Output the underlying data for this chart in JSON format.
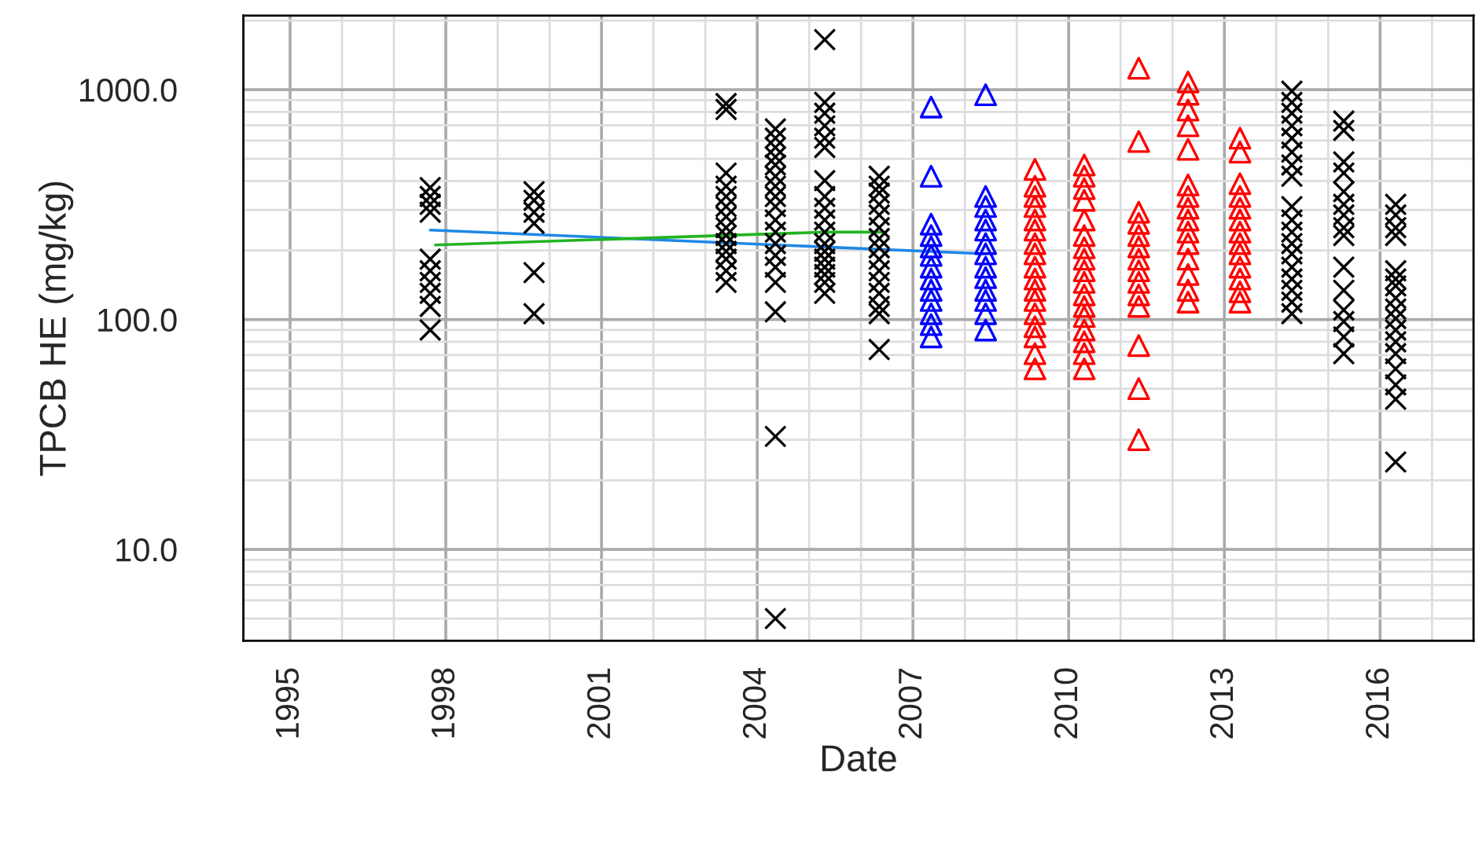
{
  "chart_data": {
    "type": "scatter",
    "xlabel": "Date",
    "ylabel": "TPCB HE (mg/kg)",
    "log": "y",
    "grid": true,
    "legend": false,
    "xlim": [
      1994.1,
      2017.8
    ],
    "xticks": [
      1995,
      1998,
      2001,
      2004,
      2007,
      2010,
      2013,
      2016
    ],
    "ylim": [
      4,
      2100
    ],
    "yticks": [
      {
        "value": 10,
        "label": "10.0"
      },
      {
        "value": 100,
        "label": "100.0"
      },
      {
        "value": 1000,
        "label": "1000.0"
      }
    ],
    "series": [
      {
        "marker": "cross",
        "color": "#000000",
        "x": [
          1997.7,
          1997.7,
          1997.7,
          1997.7,
          1997.7,
          1997.7,
          1997.7,
          1997.7,
          1997.7,
          1997.7,
          1999.7,
          1999.7,
          1999.7,
          1999.7,
          1999.7,
          1999.7,
          2003.4,
          2003.4,
          2003.4,
          2003.4,
          2003.4,
          2003.4,
          2003.4,
          2003.4,
          2003.4,
          2003.4,
          2003.4,
          2003.4,
          2003.4,
          2003.4,
          2004.35,
          2004.35,
          2004.35,
          2004.35,
          2004.35,
          2004.35,
          2004.35,
          2004.35,
          2004.35,
          2004.35,
          2004.35,
          2004.35,
          2004.35,
          2004.35,
          2004.35,
          2004.35,
          2004.35,
          2004.35,
          2005.3,
          2005.3,
          2005.3,
          2005.3,
          2005.3,
          2005.3,
          2005.3,
          2005.3,
          2005.3,
          2005.3,
          2005.3,
          2005.3,
          2005.3,
          2005.3,
          2005.3,
          2005.3,
          2005.3,
          2005.3,
          2006.35,
          2006.35,
          2006.35,
          2006.35,
          2006.35,
          2006.35,
          2006.35,
          2006.35,
          2006.35,
          2006.35,
          2006.35,
          2006.35,
          2006.35,
          2006.35,
          2006.35,
          2014.3,
          2014.3,
          2014.3,
          2014.3,
          2014.3,
          2014.3,
          2014.3,
          2014.3,
          2014.3,
          2014.3,
          2014.3,
          2014.3,
          2014.3,
          2014.3,
          2014.3,
          2014.3,
          2014.3,
          2014.3,
          2015.3,
          2015.3,
          2015.3,
          2015.3,
          2015.3,
          2015.3,
          2015.3,
          2015.3,
          2015.3,
          2015.3,
          2015.3,
          2015.3,
          2015.3,
          2015.3,
          2015.3,
          2016.3,
          2016.3,
          2016.3,
          2016.3,
          2016.3,
          2016.3,
          2016.3,
          2016.3,
          2016.3,
          2016.3,
          2016.3,
          2016.3,
          2016.3,
          2016.3,
          2016.3,
          2016.3,
          2016.3
        ],
        "values": [
          375,
          343,
          317,
          293,
          183,
          163,
          145,
          130,
          114,
          90,
          360,
          330,
          293,
          262,
          160,
          106,
          870,
          820,
          434,
          380,
          343,
          310,
          280,
          251,
          232,
          214,
          198,
          183,
          163,
          145,
          675,
          615,
          560,
          510,
          470,
          420,
          380,
          343,
          310,
          271,
          240,
          214,
          190,
          169,
          145,
          108,
          31,
          5,
          1650,
          880,
          790,
          696,
          615,
          560,
          402,
          343,
          305,
          271,
          240,
          214,
          198,
          183,
          169,
          157,
          145,
          130,
          420,
          380,
          355,
          317,
          285,
          251,
          225,
          205,
          183,
          163,
          145,
          130,
          114,
          106,
          74,
          985,
          880,
          790,
          696,
          615,
          535,
          470,
          420,
          310,
          271,
          240,
          214,
          193,
          169,
          150,
          134,
          119,
          106,
          730,
          665,
          485,
          434,
          360,
          317,
          285,
          251,
          232,
          169,
          134,
          110,
          98,
          84,
          71,
          317,
          285,
          251,
          232,
          163,
          150,
          140,
          124,
          111,
          101,
          90,
          80,
          71,
          61,
          52,
          45,
          24
        ]
      },
      {
        "marker": "triangle",
        "color": "#0000ff",
        "x": [
          2007.35,
          2007.35,
          2007.35,
          2007.35,
          2007.35,
          2007.35,
          2007.35,
          2007.35,
          2007.35,
          2007.35,
          2007.35,
          2007.35,
          2007.35,
          2008.4,
          2008.4,
          2008.4,
          2008.4,
          2008.4,
          2008.4,
          2008.4,
          2008.4,
          2008.4,
          2008.4,
          2008.4,
          2008.4,
          2008.4
        ],
        "values": [
          840,
          420,
          260,
          232,
          207,
          190,
          169,
          150,
          134,
          121,
          106,
          95,
          84,
          950,
          343,
          310,
          271,
          245,
          214,
          193,
          169,
          152,
          134,
          121,
          106,
          90
        ]
      },
      {
        "marker": "triangle",
        "color": "#ff0000",
        "x": [
          2009.35,
          2009.35,
          2009.35,
          2009.35,
          2009.35,
          2009.35,
          2009.35,
          2009.35,
          2009.35,
          2009.35,
          2009.35,
          2009.35,
          2009.35,
          2009.35,
          2009.35,
          2009.35,
          2009.35,
          2010.3,
          2010.3,
          2010.3,
          2010.3,
          2010.3,
          2010.3,
          2010.3,
          2010.3,
          2010.3,
          2010.3,
          2010.3,
          2010.3,
          2010.3,
          2010.3,
          2010.3,
          2010.3,
          2010.3,
          2011.35,
          2011.35,
          2011.35,
          2011.35,
          2011.35,
          2011.35,
          2011.35,
          2011.35,
          2011.35,
          2011.35,
          2011.35,
          2011.35,
          2011.35,
          2011.35,
          2012.3,
          2012.3,
          2012.3,
          2012.3,
          2012.3,
          2012.3,
          2012.3,
          2012.3,
          2012.3,
          2012.3,
          2012.3,
          2012.3,
          2012.3,
          2012.3,
          2012.3,
          2013.3,
          2013.3,
          2013.3,
          2013.3,
          2013.3,
          2013.3,
          2013.3,
          2013.3,
          2013.3,
          2013.3,
          2013.3,
          2013.3,
          2013.3
        ],
        "values": [
          450,
          380,
          343,
          310,
          271,
          245,
          214,
          193,
          169,
          150,
          134,
          121,
          106,
          93,
          84,
          71,
          61,
          470,
          420,
          371,
          330,
          271,
          232,
          205,
          183,
          163,
          145,
          128,
          114,
          103,
          90,
          80,
          71,
          61,
          1240,
          595,
          293,
          262,
          232,
          207,
          183,
          163,
          145,
          128,
          114,
          77,
          50,
          30,
          1080,
          955,
          815,
          696,
          550,
          385,
          343,
          305,
          271,
          240,
          214,
          183,
          157,
          134,
          119,
          615,
          535,
          390,
          343,
          305,
          271,
          240,
          214,
          193,
          169,
          150,
          132,
          119
        ]
      },
      {
        "type": "line",
        "marker": "none",
        "color": "#1e88e5",
        "x": [
          1997.7,
          2008.4
        ],
        "values": [
          245,
          193
        ]
      },
      {
        "type": "line",
        "marker": "none",
        "color": "#22b422",
        "x": [
          1997.8,
          2005.3,
          2006.4
        ],
        "values": [
          211,
          240,
          240
        ]
      }
    ]
  }
}
